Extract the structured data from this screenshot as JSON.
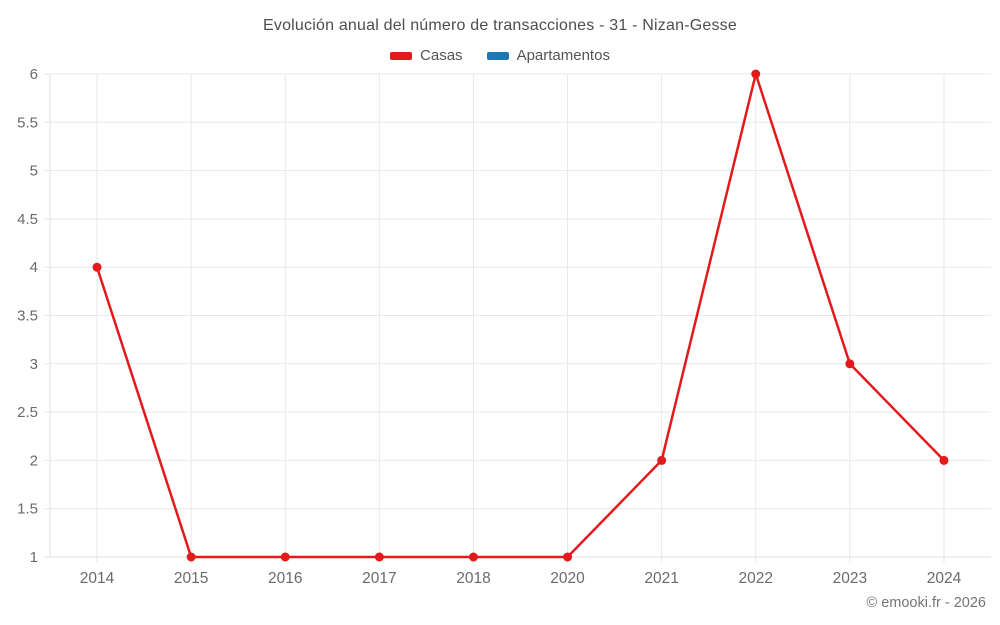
{
  "page": {
    "title": "Evolución anual del número de transacciones - 31 - Nizan-Gesse",
    "footer": "© emooki.fr - 2026"
  },
  "legend": {
    "items": [
      {
        "id": "casas",
        "label": "Casas",
        "color": "#e31a1c"
      },
      {
        "id": "apartamentos",
        "label": "Apartamentos",
        "color": "#1f78b4"
      }
    ]
  },
  "chart_data": {
    "type": "line",
    "title": "Evolución anual del número de transacciones - 31 - Nizan-Gesse",
    "categories": [
      "2014",
      "2015",
      "2016",
      "2017",
      "2018",
      "2020",
      "2021",
      "2022",
      "2023",
      "2024"
    ],
    "series": [
      {
        "name": "Casas",
        "color": "#e31a1c",
        "values": [
          4,
          1,
          1,
          1,
          1,
          1,
          2,
          6,
          3,
          2
        ]
      },
      {
        "name": "Apartamentos",
        "color": "#1f78b4",
        "values": []
      }
    ],
    "xlabel": "",
    "ylabel": "",
    "ylim": [
      1,
      6
    ],
    "yticks": [
      1,
      1.5,
      2,
      2.5,
      3,
      3.5,
      4,
      4.5,
      5,
      5.5,
      6
    ],
    "grid": true,
    "legend_position": "top",
    "point_style": "circle"
  },
  "colors": {
    "grid": "#e8e8e8",
    "axis_border": "#e0e0e0",
    "tick_text": "#6b6b6b",
    "title_text": "#4e4e4e",
    "footer_text": "#757575"
  }
}
